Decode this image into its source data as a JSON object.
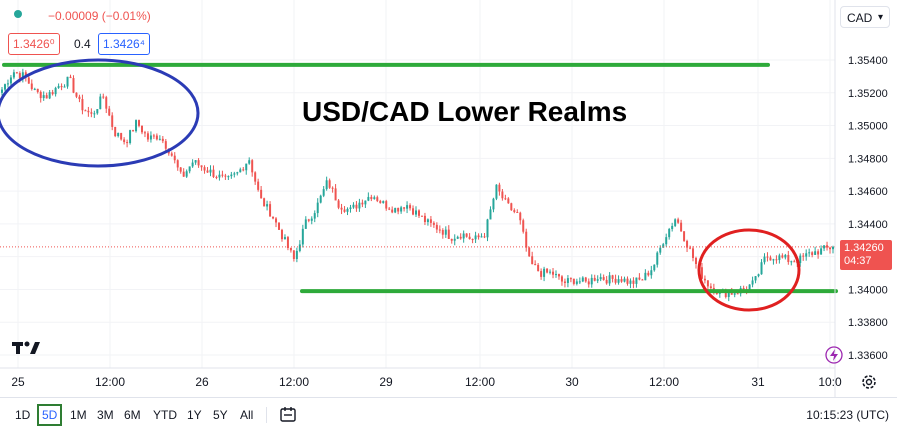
{
  "header": {
    "change": "−0.00009 (−0.01%)",
    "bid": "1.3426⁰",
    "spread": "0.4",
    "ask": "1.3426⁴",
    "currency": "CAD"
  },
  "overlay_title": "USD/CAD Lower Realms",
  "last_price": {
    "price": "1.34260",
    "countdown": "04:37"
  },
  "toolbar": {
    "ranges": [
      "1D",
      "5D",
      "1M",
      "3M",
      "6M",
      "YTD",
      "1Y",
      "5Y",
      "All"
    ],
    "selected": "5D",
    "clock": "10:15:23 (UTC)"
  },
  "colors": {
    "up": "#26a69a",
    "down": "#ef5350",
    "support": "#2eaa3a",
    "blue_circle": "#2b3bb5",
    "red_circle": "#e02020"
  },
  "chart_data": {
    "type": "candlestick",
    "title": "",
    "xlabel": "",
    "ylabel": "",
    "ylim": [
      1.3355,
      1.3555
    ],
    "y_ticks": [
      "1.35400",
      "1.35200",
      "1.35000",
      "1.34800",
      "1.34600",
      "1.34400",
      "1.34200",
      "1.34000",
      "1.33800",
      "1.33600"
    ],
    "x_ticks": [
      "25",
      "12:00",
      "26",
      "12:00",
      "29",
      "12:00",
      "30",
      "12:00",
      "31",
      "10:0"
    ],
    "close_path": [
      1.3522,
      1.3533,
      1.353,
      1.352,
      1.3518,
      1.3524,
      1.3528,
      1.3512,
      1.3506,
      1.3518,
      1.3496,
      1.349,
      1.3502,
      1.3492,
      1.3494,
      1.3484,
      1.3468,
      1.3478,
      1.3474,
      1.347,
      1.3466,
      1.3471,
      1.348,
      1.3455,
      1.3446,
      1.3432,
      1.3418,
      1.344,
      1.345,
      1.3466,
      1.3452,
      1.3448,
      1.3454,
      1.3458,
      1.3452,
      1.3449,
      1.3452,
      1.3446,
      1.344,
      1.3437,
      1.3432,
      1.3434,
      1.343,
      1.3434,
      1.3462,
      1.3451,
      1.3445,
      1.3416,
      1.341,
      1.341,
      1.3404,
      1.3406,
      1.3404,
      1.3408,
      1.3406,
      1.3407,
      1.3404,
      1.3406,
      1.3414,
      1.3432,
      1.3444,
      1.3428,
      1.3412,
      1.3402,
      1.3398,
      1.3398,
      1.34,
      1.3404,
      1.342,
      1.342,
      1.3418,
      1.3418,
      1.3422,
      1.3424,
      1.3426
    ],
    "resistance": 1.3537,
    "support": 1.3399,
    "last": 1.3426
  }
}
